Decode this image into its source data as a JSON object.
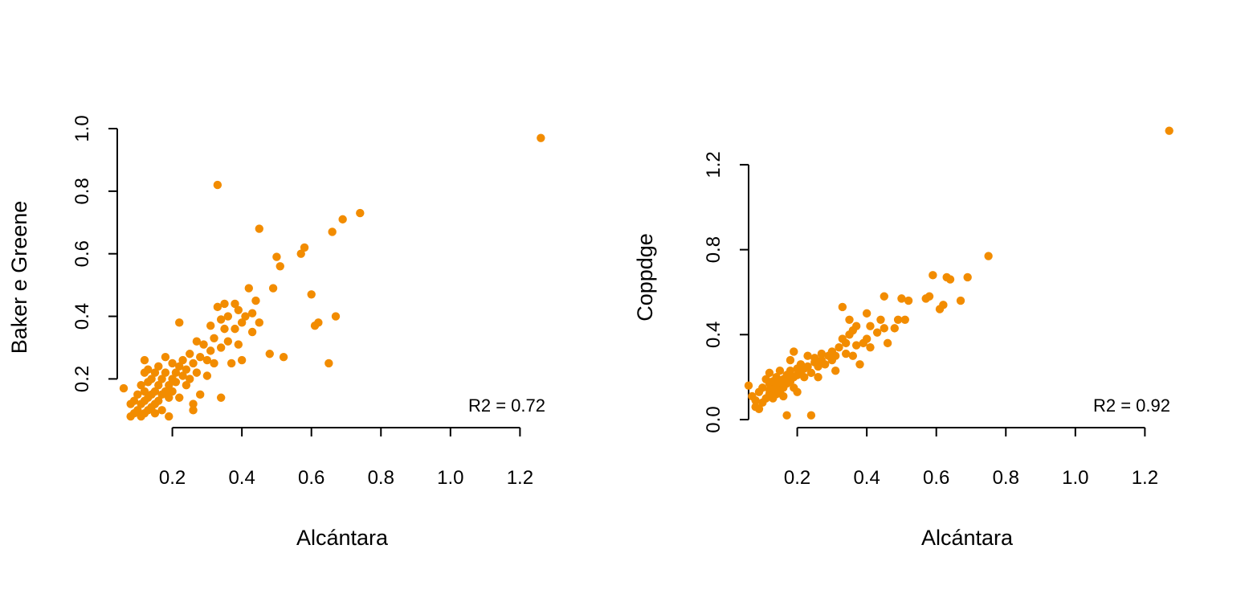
{
  "colors": {
    "points": "#F28C00",
    "axis": "#000000",
    "background": "#FFFFFF"
  },
  "chart_data": [
    {
      "type": "scatter",
      "xlabel": "Alcántara",
      "ylabel": "Baker e Greene",
      "annotation": "R2 = 0.72",
      "xlim": [
        0.06,
        1.28
      ],
      "ylim": [
        0.07,
        1.0
      ],
      "xticks": [
        0.2,
        0.4,
        0.6,
        0.8,
        1.0,
        1.2
      ],
      "xtick_labels": [
        "0.2",
        "0.4",
        "0.6",
        "0.8",
        "1.0",
        "1.2"
      ],
      "yticks": [
        0.2,
        0.4,
        0.6,
        0.8,
        1.0
      ],
      "ytick_labels": [
        "0.2",
        "0.4",
        "0.6",
        "0.8",
        "1.0"
      ],
      "grid": false,
      "points": [
        [
          0.06,
          0.17
        ],
        [
          0.08,
          0.08
        ],
        [
          0.08,
          0.12
        ],
        [
          0.09,
          0.13
        ],
        [
          0.09,
          0.09
        ],
        [
          0.1,
          0.1
        ],
        [
          0.1,
          0.15
        ],
        [
          0.11,
          0.12
        ],
        [
          0.11,
          0.08
        ],
        [
          0.11,
          0.18
        ],
        [
          0.12,
          0.09
        ],
        [
          0.12,
          0.13
        ],
        [
          0.12,
          0.16
        ],
        [
          0.12,
          0.22
        ],
        [
          0.12,
          0.26
        ],
        [
          0.13,
          0.1
        ],
        [
          0.13,
          0.14
        ],
        [
          0.13,
          0.19
        ],
        [
          0.13,
          0.23
        ],
        [
          0.14,
          0.11
        ],
        [
          0.14,
          0.15
        ],
        [
          0.14,
          0.2
        ],
        [
          0.15,
          0.12
        ],
        [
          0.15,
          0.16
        ],
        [
          0.15,
          0.09
        ],
        [
          0.15,
          0.22
        ],
        [
          0.16,
          0.13
        ],
        [
          0.16,
          0.18
        ],
        [
          0.16,
          0.24
        ],
        [
          0.17,
          0.15
        ],
        [
          0.17,
          0.2
        ],
        [
          0.17,
          0.1
        ],
        [
          0.18,
          0.16
        ],
        [
          0.18,
          0.22
        ],
        [
          0.18,
          0.27
        ],
        [
          0.19,
          0.18
        ],
        [
          0.19,
          0.14
        ],
        [
          0.19,
          0.08
        ],
        [
          0.2,
          0.2
        ],
        [
          0.2,
          0.25
        ],
        [
          0.2,
          0.16
        ],
        [
          0.21,
          0.22
        ],
        [
          0.21,
          0.19
        ],
        [
          0.22,
          0.24
        ],
        [
          0.22,
          0.14
        ],
        [
          0.22,
          0.38
        ],
        [
          0.23,
          0.21
        ],
        [
          0.23,
          0.26
        ],
        [
          0.24,
          0.23
        ],
        [
          0.24,
          0.18
        ],
        [
          0.25,
          0.28
        ],
        [
          0.25,
          0.2
        ],
        [
          0.26,
          0.25
        ],
        [
          0.26,
          0.12
        ],
        [
          0.26,
          0.1
        ],
        [
          0.27,
          0.32
        ],
        [
          0.27,
          0.22
        ],
        [
          0.28,
          0.27
        ],
        [
          0.28,
          0.15
        ],
        [
          0.29,
          0.31
        ],
        [
          0.3,
          0.26
        ],
        [
          0.3,
          0.21
        ],
        [
          0.31,
          0.29
        ],
        [
          0.31,
          0.37
        ],
        [
          0.32,
          0.33
        ],
        [
          0.32,
          0.25
        ],
        [
          0.33,
          0.82
        ],
        [
          0.33,
          0.43
        ],
        [
          0.34,
          0.39
        ],
        [
          0.34,
          0.3
        ],
        [
          0.34,
          0.14
        ],
        [
          0.35,
          0.36
        ],
        [
          0.35,
          0.44
        ],
        [
          0.36,
          0.32
        ],
        [
          0.36,
          0.4
        ],
        [
          0.37,
          0.25
        ],
        [
          0.38,
          0.44
        ],
        [
          0.38,
          0.36
        ],
        [
          0.39,
          0.31
        ],
        [
          0.39,
          0.42
        ],
        [
          0.4,
          0.38
        ],
        [
          0.4,
          0.26
        ],
        [
          0.41,
          0.4
        ],
        [
          0.42,
          0.49
        ],
        [
          0.43,
          0.35
        ],
        [
          0.43,
          0.41
        ],
        [
          0.44,
          0.45
        ],
        [
          0.45,
          0.68
        ],
        [
          0.45,
          0.38
        ],
        [
          0.48,
          0.28
        ],
        [
          0.49,
          0.49
        ],
        [
          0.5,
          0.59
        ],
        [
          0.51,
          0.56
        ],
        [
          0.52,
          0.27
        ],
        [
          0.57,
          0.6
        ],
        [
          0.58,
          0.62
        ],
        [
          0.6,
          0.47
        ],
        [
          0.61,
          0.37
        ],
        [
          0.62,
          0.38
        ],
        [
          0.65,
          0.25
        ],
        [
          0.66,
          0.67
        ],
        [
          0.67,
          0.4
        ],
        [
          0.69,
          0.71
        ],
        [
          0.74,
          0.73
        ],
        [
          1.26,
          0.97
        ]
      ]
    },
    {
      "type": "scatter",
      "xlabel": "Alcántara",
      "ylabel": "Coppdge",
      "annotation": "R2 = 0.92",
      "xlim": [
        0.06,
        1.28
      ],
      "ylim": [
        0.0,
        1.37
      ],
      "xticks": [
        0.2,
        0.4,
        0.6,
        0.8,
        1.0,
        1.2
      ],
      "xtick_labels": [
        "0.2",
        "0.4",
        "0.6",
        "0.8",
        "1.0",
        "1.2"
      ],
      "yticks": [
        0.0,
        0.4,
        0.8,
        1.2
      ],
      "ytick_labels": [
        "0.0",
        "0.4",
        "0.8",
        "1.2"
      ],
      "grid": false,
      "points": [
        [
          0.06,
          0.16
        ],
        [
          0.07,
          0.11
        ],
        [
          0.08,
          0.06
        ],
        [
          0.08,
          0.09
        ],
        [
          0.09,
          0.05
        ],
        [
          0.09,
          0.13
        ],
        [
          0.1,
          0.08
        ],
        [
          0.1,
          0.15
        ],
        [
          0.11,
          0.1
        ],
        [
          0.11,
          0.19
        ],
        [
          0.12,
          0.12
        ],
        [
          0.12,
          0.14
        ],
        [
          0.12,
          0.17
        ],
        [
          0.12,
          0.22
        ],
        [
          0.13,
          0.1
        ],
        [
          0.13,
          0.15
        ],
        [
          0.13,
          0.18
        ],
        [
          0.14,
          0.12
        ],
        [
          0.14,
          0.16
        ],
        [
          0.14,
          0.2
        ],
        [
          0.15,
          0.13
        ],
        [
          0.15,
          0.18
        ],
        [
          0.15,
          0.23
        ],
        [
          0.16,
          0.15
        ],
        [
          0.16,
          0.19
        ],
        [
          0.16,
          0.11
        ],
        [
          0.17,
          0.17
        ],
        [
          0.17,
          0.21
        ],
        [
          0.17,
          0.02
        ],
        [
          0.18,
          0.18
        ],
        [
          0.18,
          0.23
        ],
        [
          0.18,
          0.28
        ],
        [
          0.19,
          0.2
        ],
        [
          0.19,
          0.15
        ],
        [
          0.19,
          0.32
        ],
        [
          0.2,
          0.21
        ],
        [
          0.2,
          0.24
        ],
        [
          0.2,
          0.13
        ],
        [
          0.21,
          0.22
        ],
        [
          0.21,
          0.26
        ],
        [
          0.22,
          0.2
        ],
        [
          0.22,
          0.24
        ],
        [
          0.23,
          0.25
        ],
        [
          0.23,
          0.3
        ],
        [
          0.24,
          0.22
        ],
        [
          0.24,
          0.02
        ],
        [
          0.25,
          0.27
        ],
        [
          0.25,
          0.29
        ],
        [
          0.26,
          0.25
        ],
        [
          0.26,
          0.2
        ],
        [
          0.27,
          0.28
        ],
        [
          0.27,
          0.31
        ],
        [
          0.28,
          0.26
        ],
        [
          0.29,
          0.3
        ],
        [
          0.3,
          0.28
        ],
        [
          0.3,
          0.32
        ],
        [
          0.31,
          0.23
        ],
        [
          0.31,
          0.3
        ],
        [
          0.32,
          0.34
        ],
        [
          0.33,
          0.53
        ],
        [
          0.33,
          0.38
        ],
        [
          0.34,
          0.36
        ],
        [
          0.34,
          0.31
        ],
        [
          0.35,
          0.4
        ],
        [
          0.35,
          0.47
        ],
        [
          0.36,
          0.42
        ],
        [
          0.36,
          0.3
        ],
        [
          0.37,
          0.35
        ],
        [
          0.37,
          0.44
        ],
        [
          0.38,
          0.26
        ],
        [
          0.39,
          0.36
        ],
        [
          0.4,
          0.38
        ],
        [
          0.4,
          0.5
        ],
        [
          0.41,
          0.44
        ],
        [
          0.41,
          0.34
        ],
        [
          0.43,
          0.41
        ],
        [
          0.44,
          0.47
        ],
        [
          0.45,
          0.43
        ],
        [
          0.45,
          0.58
        ],
        [
          0.46,
          0.36
        ],
        [
          0.48,
          0.43
        ],
        [
          0.49,
          0.47
        ],
        [
          0.5,
          0.57
        ],
        [
          0.51,
          0.47
        ],
        [
          0.52,
          0.56
        ],
        [
          0.57,
          0.57
        ],
        [
          0.58,
          0.58
        ],
        [
          0.59,
          0.68
        ],
        [
          0.61,
          0.52
        ],
        [
          0.62,
          0.54
        ],
        [
          0.63,
          0.67
        ],
        [
          0.64,
          0.66
        ],
        [
          0.67,
          0.56
        ],
        [
          0.69,
          0.67
        ],
        [
          0.75,
          0.77
        ],
        [
          1.27,
          1.36
        ]
      ]
    }
  ]
}
